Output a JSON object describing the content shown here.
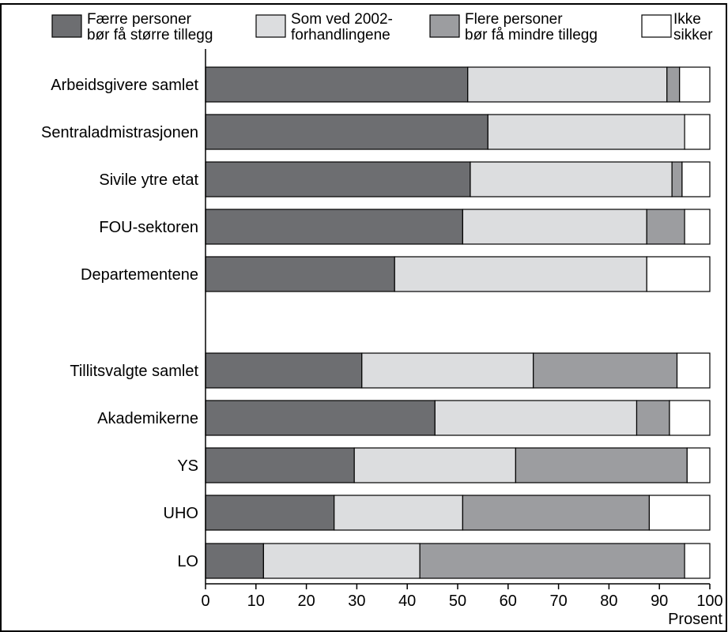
{
  "chart_data": {
    "type": "bar",
    "orientation": "horizontal",
    "stacked": true,
    "categories": [
      "Arbeidsgivere samlet",
      "Sentraladmistrasjonen",
      "Sivile ytre etat",
      "FOU-sektoren",
      "Departementene",
      "Tillitsvalgte samlet",
      "Akademikerne",
      "YS",
      "UHO",
      "LO"
    ],
    "series": [
      {
        "name_lines": [
          "Færre personer",
          "bør få større tillegg"
        ],
        "color": "#6d6e71",
        "values": [
          52,
          56,
          52.5,
          51,
          37.5,
          31,
          45.5,
          29.5,
          25.5,
          11.5
        ]
      },
      {
        "name_lines": [
          "Som ved 2002-",
          "forhandlingene"
        ],
        "color": "#dcdddf",
        "values": [
          39.5,
          39,
          40,
          36.5,
          50,
          34,
          40,
          32,
          25.5,
          31
        ]
      },
      {
        "name_lines": [
          "Flere personer",
          "bør få mindre tillegg"
        ],
        "color": "#9c9da0",
        "values": [
          2.5,
          0,
          2,
          7.5,
          0,
          28.5,
          6.5,
          34,
          37,
          52.5
        ]
      },
      {
        "name_lines": [
          "Ikke",
          "sikker"
        ],
        "color": "#ffffff",
        "values": [
          6,
          5,
          5.5,
          5,
          12.5,
          6.5,
          8,
          4.5,
          12,
          5
        ]
      }
    ],
    "xlabel": "Prosent",
    "xlim": [
      0,
      100
    ],
    "xticks": [
      0,
      10,
      20,
      30,
      40,
      50,
      60,
      70,
      80,
      90,
      100
    ],
    "grid": false,
    "legend_position": "top"
  }
}
